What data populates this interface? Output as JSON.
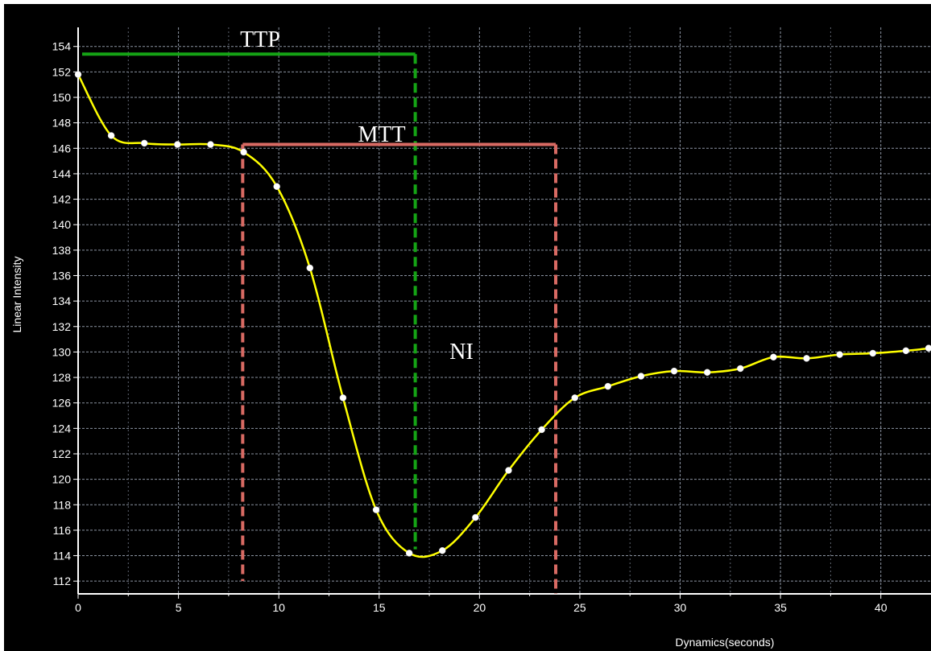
{
  "chart_data": {
    "type": "line",
    "title": "",
    "xlabel": "Dynamics(seconds)",
    "ylabel": "Linear Intensity",
    "xlim": [
      0,
      42.5
    ],
    "ylim": [
      111,
      155.5
    ],
    "x_ticks": [
      0,
      5,
      10,
      15,
      20,
      25,
      30,
      35,
      40
    ],
    "y_ticks": [
      112,
      114,
      116,
      118,
      120,
      122,
      124,
      126,
      128,
      130,
      132,
      134,
      136,
      138,
      140,
      142,
      144,
      146,
      148,
      150,
      152,
      154
    ],
    "grid": true,
    "series": [
      {
        "color": "#ffff00",
        "x": [
          0,
          1.65,
          3.3,
          4.95,
          6.6,
          8.25,
          9.9,
          11.55,
          13.2,
          14.85,
          16.5,
          18.15,
          19.8,
          21.45,
          23.1,
          24.75,
          26.4,
          28.05,
          29.7,
          31.35,
          33.0,
          34.65,
          36.3,
          37.95,
          39.6,
          41.25,
          42.5
        ],
        "y": [
          151.8,
          147.0,
          146.4,
          146.3,
          146.3,
          145.7,
          143.0,
          136.6,
          126.4,
          117.6,
          114.2,
          114.4,
          117.0,
          120.7,
          123.9,
          126.4,
          127.3,
          128.1,
          128.5,
          128.4,
          128.7,
          129.6,
          129.5,
          129.8,
          129.9,
          130.1,
          130.3
        ]
      }
    ],
    "annotations": [
      {
        "label": "TTP",
        "color": "#15a315",
        "horizontal": {
          "x0": 0.2,
          "x1": 16.8,
          "y": 153.4
        },
        "vertical": {
          "x": 16.8,
          "y0": 153.4,
          "y1": 114.5
        }
      },
      {
        "label": "MTT",
        "color": "#d86a63",
        "horizontal": {
          "x0": 8.2,
          "x1": 23.8,
          "y": 146.3
        },
        "verticals": [
          {
            "x": 8.2,
            "y0": 146.3,
            "y1": 112.0
          },
          {
            "x": 23.8,
            "y0": 146.3,
            "y1": 111.0
          }
        ]
      },
      {
        "label": "NI",
        "x": 18.4,
        "y": 130.0
      }
    ]
  }
}
